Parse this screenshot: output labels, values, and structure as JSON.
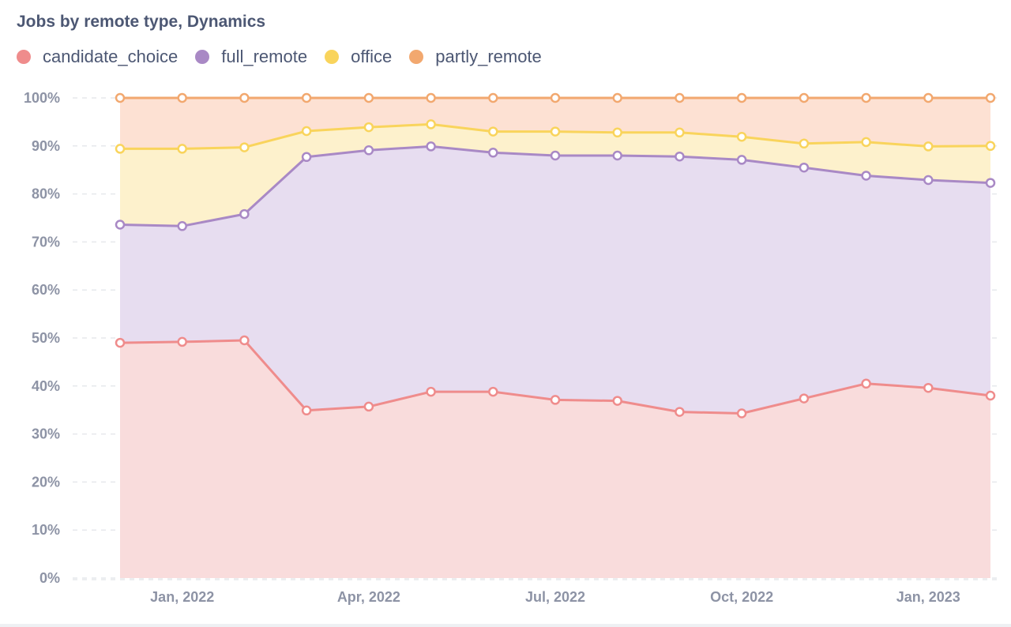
{
  "chart_data": {
    "type": "area",
    "stacked": true,
    "normalized": true,
    "title": "Jobs by remote type, Dynamics",
    "xlabel": "",
    "ylabel": "",
    "ylim": [
      0,
      100
    ],
    "y_ticks": [
      "0%",
      "10%",
      "20%",
      "30%",
      "40%",
      "50%",
      "60%",
      "70%",
      "80%",
      "90%",
      "100%"
    ],
    "x_ticks": [
      "Jan, 2022",
      "Apr, 2022",
      "Jul, 2022",
      "Oct, 2022",
      "Jan, 2023"
    ],
    "x_tick_indices": [
      1,
      4,
      7,
      10,
      13
    ],
    "x": [
      "2021-12",
      "2022-01",
      "2022-02",
      "2022-03",
      "2022-04",
      "2022-05",
      "2022-06",
      "2022-07",
      "2022-08",
      "2022-09",
      "2022-10",
      "2022-11",
      "2022-12",
      "2023-01",
      "2023-02"
    ],
    "legend_position": "top-left",
    "grid": true,
    "series": [
      {
        "name": "candidate_choice",
        "color": "#ef8c8c",
        "fill": "#f9dcdc",
        "values": [
          49,
          49.2,
          49.5,
          34.9,
          35.7,
          38.8,
          38.8,
          37.1,
          36.9,
          34.6,
          34.3,
          37.4,
          40.5,
          39.6,
          38.0
        ]
      },
      {
        "name": "full_remote",
        "color": "#a989c5",
        "fill": "#e7ddf0",
        "values": [
          24.6,
          24.1,
          26.3,
          52.8,
          53.4,
          51.1,
          49.8,
          50.9,
          51.1,
          53.2,
          52.8,
          48.1,
          43.3,
          43.3,
          44.3
        ]
      },
      {
        "name": "office",
        "color": "#f9d45c",
        "fill": "#fdf1cc",
        "values": [
          15.8,
          16.1,
          13.9,
          5.4,
          4.8,
          4.6,
          4.4,
          5.0,
          4.8,
          5.0,
          4.8,
          5.0,
          7.0,
          7.0,
          7.7
        ]
      },
      {
        "name": "partly_remote",
        "color": "#f2a86f",
        "fill": "#fde1d3",
        "values": [
          10.6,
          10.6,
          10.3,
          6.9,
          6.1,
          5.5,
          7.0,
          7.0,
          7.2,
          7.2,
          8.1,
          9.5,
          9.2,
          10.1,
          10.0
        ]
      }
    ]
  }
}
